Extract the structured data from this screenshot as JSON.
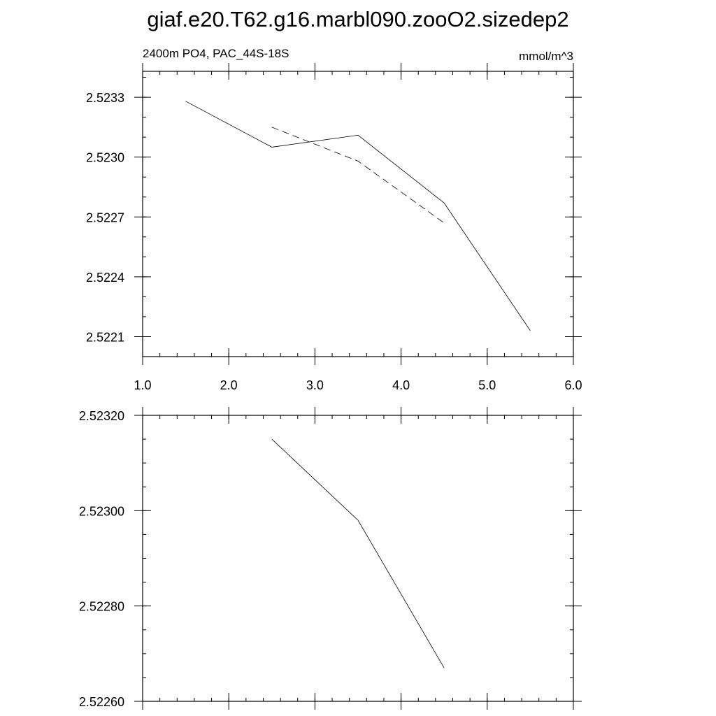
{
  "title": "giaf.e20.T62.g16.marbl090.zooO2.sizedep2",
  "chart_data": [
    {
      "type": "line",
      "subtitle_left": "2400m PO4, PAC_44S-18S",
      "subtitle_right": "mmol/m^3",
      "xlim": [
        1.0,
        6.0
      ],
      "ylim": [
        2.522,
        2.52343
      ],
      "x_tick_labels": [
        "1.0",
        "2.0",
        "3.0",
        "4.0",
        "5.0",
        "6.0"
      ],
      "x_ticks": [
        1,
        2,
        3,
        4,
        5,
        6
      ],
      "y_tick_labels": [
        "2.5233",
        "2.5230",
        "2.5227",
        "2.5224",
        "2.5221"
      ],
      "y_ticks": [
        2.5233,
        2.523,
        2.5227,
        2.5224,
        2.5221
      ],
      "series": [
        {
          "style": "solid",
          "x": [
            1.5,
            2.5,
            3.5,
            4.5,
            5.5
          ],
          "y": [
            2.52328,
            2.52305,
            2.52311,
            2.52277,
            2.52213
          ]
        },
        {
          "style": "dashed",
          "x": [
            2.5,
            3.5,
            4.5
          ],
          "y": [
            2.52315,
            2.52298,
            2.52267
          ]
        }
      ]
    },
    {
      "type": "line",
      "xlim": [
        1.0,
        6.0
      ],
      "ylim": [
        2.5226,
        2.5232
      ],
      "y_tick_labels": [
        "2.52320",
        "2.52300",
        "2.52280",
        "2.52260"
      ],
      "y_ticks": [
        2.5232,
        2.523,
        2.5228,
        2.5226
      ],
      "series": [
        {
          "style": "solid",
          "x": [
            2.5,
            3.5,
            4.5
          ],
          "y": [
            2.52315,
            2.52298,
            2.52267
          ]
        }
      ]
    }
  ]
}
